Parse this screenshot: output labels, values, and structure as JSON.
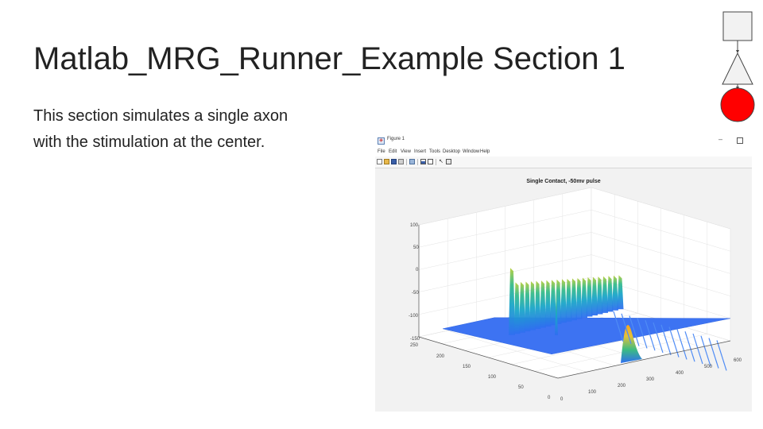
{
  "slide": {
    "title": "Matlab_MRG_Runner_Example Section 1",
    "body_line1": "This section simulates a single axon",
    "body_line2": "with the stimulation at the center."
  },
  "logo": {
    "shapes": [
      "square",
      "triangle",
      "circle"
    ],
    "circle_color": "#ff0000"
  },
  "figure_window": {
    "title": "Figure 1",
    "minimize_glyph": "–",
    "menu": [
      "File",
      "Edit",
      "View",
      "Insert",
      "Tools",
      "Desktop",
      "Window",
      "Help"
    ],
    "toolbar_icons": [
      "new-figure-icon",
      "open-icon",
      "save-icon",
      "print-icon",
      "link-icon",
      "colorbar-icon",
      "legend-icon",
      "pointer-icon",
      "property-editor-icon"
    ]
  },
  "chart_data": {
    "type": "surface3d",
    "title": "Single Contact, -50mv pulse",
    "zlim": [
      -150,
      100
    ],
    "z_ticks": [
      "100",
      "50",
      "0",
      "-50",
      "-100",
      "-150"
    ],
    "y_ticks": [
      "250",
      "200",
      "150",
      "100",
      "50",
      "0"
    ],
    "x_ticks": [
      "0",
      "100",
      "200",
      "300",
      "400",
      "500",
      "600"
    ],
    "baseline_value": -100,
    "peak_value": 50,
    "colormap": "parula",
    "grid": true
  }
}
